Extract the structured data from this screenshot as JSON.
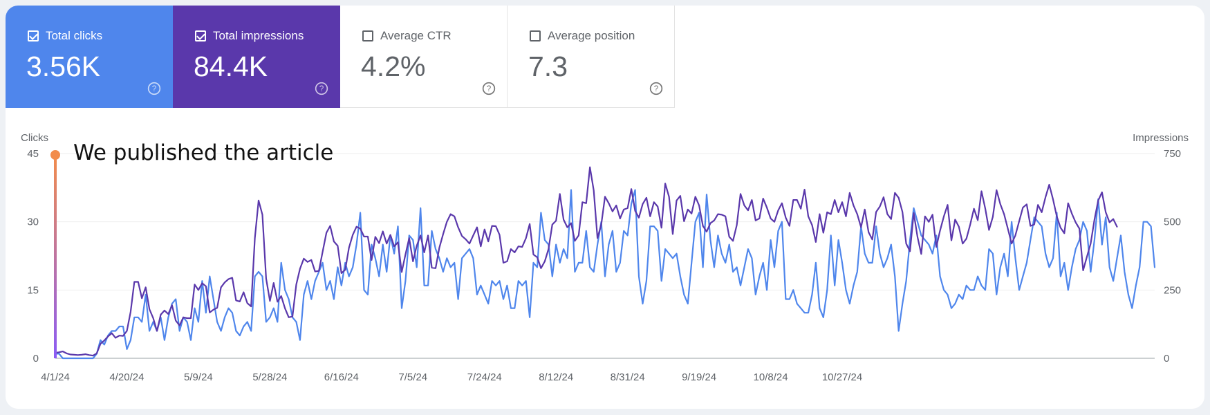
{
  "metrics": [
    {
      "label": "Total clicks",
      "value": "3.56K",
      "checked": true
    },
    {
      "label": "Total impressions",
      "value": "84.4K",
      "checked": true
    },
    {
      "label": "Average CTR",
      "value": "4.2%",
      "checked": false
    },
    {
      "label": "Average position",
      "value": "7.3",
      "checked": false
    }
  ],
  "colors": {
    "clicks": "#4f86ec",
    "impressions": "#5a38ab",
    "annotation": "#f28c4b"
  },
  "annotation": {
    "text": "We published the article",
    "date": "4/1/24"
  },
  "chart_data": {
    "type": "line",
    "left_axis_label": "Clicks",
    "right_axis_label": "Impressions",
    "left_ylim": [
      0,
      45
    ],
    "right_ylim": [
      0,
      750
    ],
    "left_ticks": [
      0,
      15,
      30,
      45
    ],
    "right_ticks": [
      0,
      250,
      500,
      750
    ],
    "x_tick_labels": [
      "4/1/24",
      "4/20/24",
      "5/9/24",
      "5/28/24",
      "6/16/24",
      "7/5/24",
      "7/24/24",
      "8/12/24",
      "8/31/24",
      "9/19/24",
      "10/8/24",
      "10/27/24"
    ],
    "x_tick_day_index": [
      0,
      19,
      38,
      57,
      76,
      95,
      114,
      133,
      152,
      171,
      190,
      209
    ],
    "grid": "horizontal",
    "series": [
      {
        "name": "Total clicks",
        "axis": "left",
        "values": [
          1,
          1,
          0,
          0,
          0,
          0,
          0,
          0,
          0,
          0,
          0,
          1,
          4,
          3,
          5,
          6,
          6,
          7,
          7,
          2,
          4,
          9,
          9,
          8,
          14,
          6,
          8,
          6,
          9,
          4,
          9,
          12,
          13,
          6,
          9,
          8,
          4,
          11,
          8,
          17,
          10,
          18,
          13,
          8,
          6,
          9,
          11,
          10,
          6,
          5,
          7,
          8,
          6,
          18,
          19,
          18,
          8,
          9,
          11,
          8,
          21,
          15,
          13,
          9,
          8,
          4,
          14,
          17,
          13,
          17,
          19,
          21,
          15,
          17,
          13,
          20,
          16,
          21,
          18,
          20,
          25,
          32,
          15,
          14,
          25,
          22,
          18,
          25,
          19,
          27,
          23,
          29,
          11,
          17,
          27,
          26,
          20,
          33,
          16,
          16,
          28,
          24,
          22,
          19,
          22,
          20,
          21,
          13,
          22,
          23,
          24,
          22,
          14,
          16,
          14,
          12,
          17,
          16,
          17,
          13,
          16,
          11,
          11,
          17,
          16,
          17,
          9,
          21,
          20,
          32,
          26,
          25,
          18,
          25,
          21,
          24,
          22,
          37,
          19,
          21,
          21,
          28,
          20,
          19,
          25,
          30,
          18,
          25,
          28,
          19,
          21,
          28,
          27,
          34,
          37,
          18,
          12,
          17,
          29,
          29,
          28,
          17,
          24,
          23,
          22,
          23,
          18,
          14,
          12,
          21,
          30,
          32,
          20,
          36,
          26,
          20,
          27,
          23,
          21,
          25,
          19,
          20,
          16,
          20,
          24,
          22,
          14,
          18,
          21,
          15,
          26,
          20,
          28,
          30,
          13,
          13,
          15,
          12,
          11,
          10,
          10,
          14,
          21,
          11,
          9,
          15,
          27,
          16,
          26,
          21,
          15,
          12,
          16,
          19,
          29,
          23,
          21,
          21,
          29,
          23,
          20,
          22,
          25,
          18,
          6,
          12,
          17,
          26,
          33,
          30,
          27,
          26,
          25,
          23,
          27,
          18,
          15,
          14,
          11,
          12,
          14,
          13,
          16,
          15,
          15,
          18,
          16,
          15,
          24,
          23,
          14,
          20,
          23,
          18,
          30,
          22,
          15,
          18,
          21,
          26,
          31,
          30,
          29,
          23,
          20,
          22,
          32,
          18,
          21,
          15,
          20,
          24,
          26,
          30,
          28,
          19,
          26,
          35,
          25,
          31,
          20,
          17,
          22,
          27,
          19,
          14,
          11,
          16,
          20,
          30,
          30,
          29,
          20
        ]
      },
      {
        "name": "Total impressions",
        "axis": "right",
        "values": [
          20,
          22,
          25,
          18,
          14,
          13,
          12,
          13,
          15,
          12,
          10,
          18,
          53,
          65,
          80,
          92,
          75,
          83,
          82,
          100,
          170,
          280,
          280,
          220,
          260,
          180,
          147,
          100,
          160,
          175,
          162,
          194,
          138,
          120,
          150,
          147,
          147,
          270,
          250,
          275,
          264,
          168,
          178,
          185,
          260,
          278,
          290,
          295,
          212,
          208,
          242,
          202,
          190,
          440,
          578,
          526,
          292,
          210,
          276,
          207,
          228,
          183,
          150,
          153,
          270,
          328,
          365,
          353,
          360,
          318,
          320,
          390,
          460,
          485,
          428,
          412,
          312,
          324,
          405,
          452,
          482,
          475,
          446,
          446,
          360,
          445,
          422,
          465,
          420,
          452,
          410,
          425,
          316,
          380,
          440,
          355,
          412,
          450,
          388,
          450,
          332,
          330,
          405,
          455,
          500,
          528,
          520,
          480,
          448,
          436,
          420,
          450,
          480,
          410,
          472,
          428,
          485,
          484,
          452,
          350,
          355,
          400,
          388,
          410,
          408,
          440,
          492,
          380,
          370,
          330,
          355,
          400,
          490,
          504,
          602,
          508,
          480,
          495,
          430,
          450,
          572,
          568,
          700,
          615,
          440,
          490,
          592,
          568,
          538,
          560,
          512,
          545,
          550,
          620,
          540,
          515,
          565,
          588,
          520,
          572,
          556,
          478,
          640,
          592,
          455,
          578,
          595,
          502,
          545,
          530,
          592,
          560,
          485,
          464,
          495,
          505,
          528,
          526,
          520,
          445,
          430,
          488,
          602,
          560,
          542,
          580,
          505,
          512,
          585,
          552,
          512,
          500,
          542,
          568,
          515,
          485,
          580,
          580,
          548,
          618,
          520,
          488,
          426,
          528,
          460,
          535,
          528,
          580,
          535,
          572,
          520,
          606,
          560,
          528,
          480,
          545,
          462,
          435,
          536,
          556,
          590,
          528,
          510,
          606,
          588,
          536,
          420,
          392,
          532,
          444,
          382,
          520,
          500,
          526,
          408,
          468,
          520,
          562,
          432,
          508,
          482,
          420,
          438,
          490,
          548,
          506,
          612,
          548,
          470,
          518,
          616,
          565,
          528,
          475,
          420,
          450,
          502,
          552,
          564,
          485,
          490,
          562,
          535,
          590,
          636,
          582,
          520,
          478,
          458,
          568,
          530,
          498,
          475,
          322,
          372,
          420,
          508,
          578,
          608,
          535,
          498,
          510,
          482
        ]
      }
    ]
  }
}
